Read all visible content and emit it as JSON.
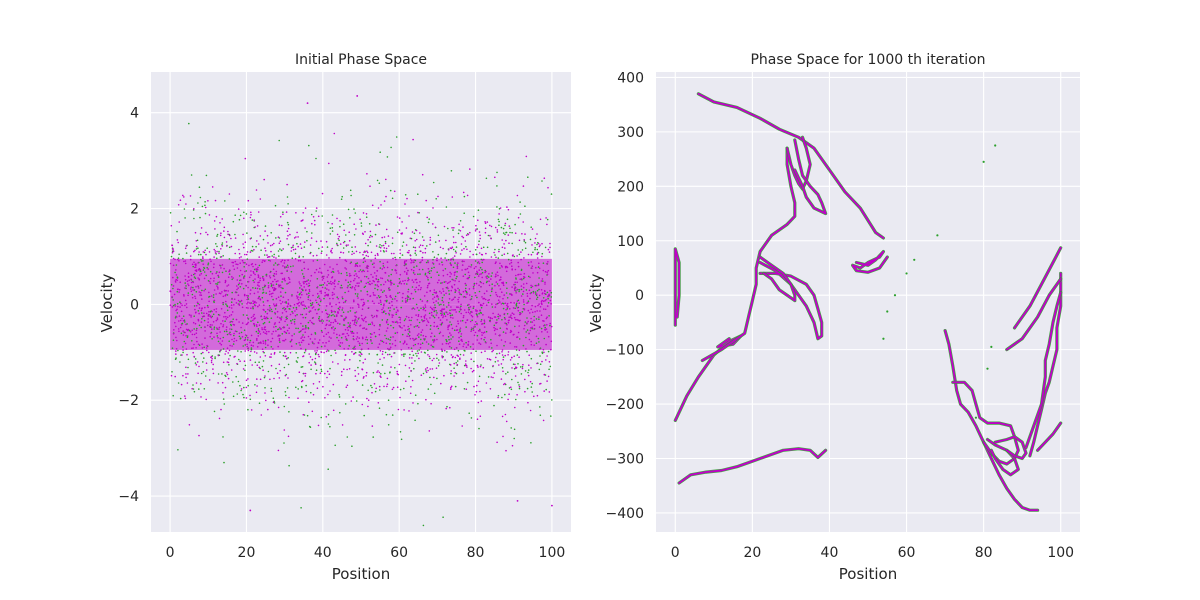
{
  "chart_data": [
    {
      "type": "scatter",
      "title": "Initial Phase Space",
      "xlabel": "Position",
      "ylabel": "Velocity",
      "xlim": [
        -5,
        105
      ],
      "ylim": [
        -4.75,
        4.85
      ],
      "xticks": [
        0,
        20,
        40,
        60,
        80,
        100
      ],
      "yticks": [
        -4,
        -2,
        0,
        2,
        4
      ],
      "grid": true,
      "background": "#eaeaf2",
      "series": [
        {
          "color": "#2ca02c",
          "distribution": "uniform position 0–100, Gaussian velocity",
          "velocity_std": 1.1,
          "point_count": 1400
        },
        {
          "color": "#c000c8",
          "distribution": "uniform position 0–100, Gaussian velocity",
          "velocity_std": 0.95,
          "point_count": 2600
        }
      ],
      "outliers": [
        {
          "x": 36,
          "y": 4.2
        },
        {
          "x": 49,
          "y": 4.35
        },
        {
          "x": 21,
          "y": -4.3
        },
        {
          "x": 100,
          "y": -4.2
        },
        {
          "x": 91,
          "y": -4.1
        }
      ]
    },
    {
      "type": "scatter",
      "title": "Phase Space for 1000 th iteration",
      "xlabel": "Position",
      "ylabel": "Velocity",
      "xlim": [
        -5,
        105
      ],
      "ylim": [
        -435,
        410
      ],
      "xticks": [
        0,
        20,
        40,
        60,
        80,
        100
      ],
      "yticks": [
        -400,
        -300,
        -200,
        -100,
        0,
        100,
        200,
        300,
        400
      ],
      "grid": true,
      "background": "#eaeaf2",
      "series": [
        {
          "color": "#2ca02c"
        },
        {
          "color": "#c000c8"
        }
      ],
      "curves": [
        [
          [
            6,
            370
          ],
          [
            10,
            355
          ],
          [
            16,
            345
          ],
          [
            22,
            325
          ],
          [
            27,
            305
          ],
          [
            32,
            290
          ],
          [
            36,
            270
          ],
          [
            40,
            230
          ],
          [
            44,
            190
          ],
          [
            48,
            160
          ],
          [
            52,
            115
          ],
          [
            54,
            105
          ]
        ],
        [
          [
            0,
            -230
          ],
          [
            3,
            -185
          ],
          [
            6,
            -150
          ],
          [
            10,
            -110
          ],
          [
            14,
            -85
          ],
          [
            17,
            -75
          ],
          [
            15,
            -90
          ],
          [
            11,
            -95
          ],
          [
            14,
            -80
          ]
        ],
        [
          [
            7,
            -120
          ],
          [
            12,
            -100
          ],
          [
            18,
            -70
          ],
          [
            19,
            -40
          ],
          [
            20,
            -10
          ],
          [
            21,
            20
          ],
          [
            21,
            50
          ],
          [
            22,
            80
          ],
          [
            25,
            110
          ],
          [
            29,
            130
          ],
          [
            31,
            145
          ],
          [
            31,
            170
          ],
          [
            30,
            200
          ],
          [
            29,
            240
          ],
          [
            29,
            270
          ]
        ],
        [
          [
            29,
            270
          ],
          [
            30,
            240
          ],
          [
            31,
            220
          ],
          [
            32,
            205
          ],
          [
            33,
            195
          ],
          [
            34,
            210
          ],
          [
            35,
            240
          ],
          [
            34,
            270
          ],
          [
            33,
            290
          ]
        ],
        [
          [
            31,
            285
          ],
          [
            32,
            250
          ],
          [
            33,
            220
          ],
          [
            35,
            200
          ],
          [
            37,
            185
          ],
          [
            38,
            170
          ],
          [
            39,
            150
          ],
          [
            36,
            160
          ],
          [
            34,
            180
          ],
          [
            33,
            200
          ],
          [
            31,
            230
          ]
        ],
        [
          [
            22,
            40
          ],
          [
            26,
            40
          ],
          [
            30,
            35
          ],
          [
            34,
            20
          ],
          [
            36,
            0
          ],
          [
            37,
            -25
          ],
          [
            38,
            -50
          ],
          [
            38,
            -75
          ],
          [
            37,
            -80
          ],
          [
            36,
            -50
          ],
          [
            34,
            -20
          ],
          [
            30,
            20
          ],
          [
            26,
            45
          ],
          [
            22,
            60
          ]
        ],
        [
          [
            22,
            70
          ],
          [
            25,
            55
          ],
          [
            28,
            40
          ],
          [
            30,
            20
          ],
          [
            31,
            0
          ],
          [
            31,
            -10
          ],
          [
            29,
            0
          ],
          [
            27,
            10
          ],
          [
            25,
            30
          ],
          [
            23,
            40
          ]
        ],
        [
          [
            47,
            60
          ],
          [
            50,
            55
          ],
          [
            52,
            65
          ],
          [
            54,
            80
          ],
          [
            53,
            70
          ],
          [
            50,
            60
          ],
          [
            48,
            50
          ],
          [
            46,
            55
          ],
          [
            47,
            45
          ],
          [
            50,
            42
          ],
          [
            53,
            50
          ],
          [
            55,
            70
          ]
        ],
        [
          [
            0,
            -55
          ],
          [
            0,
            -30
          ],
          [
            0,
            0
          ],
          [
            0,
            30
          ],
          [
            0,
            60
          ],
          [
            0,
            85
          ],
          [
            1,
            60
          ],
          [
            1,
            30
          ],
          [
            1,
            0
          ],
          [
            0.5,
            -40
          ]
        ],
        [
          [
            1,
            -345
          ],
          [
            4,
            -330
          ],
          [
            8,
            -325
          ],
          [
            12,
            -322
          ],
          [
            16,
            -315
          ],
          [
            20,
            -305
          ],
          [
            24,
            -295
          ],
          [
            28,
            -285
          ],
          [
            32,
            -282
          ],
          [
            35,
            -285
          ],
          [
            37,
            -298
          ],
          [
            39,
            -285
          ]
        ],
        [
          [
            70,
            -65
          ],
          [
            71,
            -90
          ],
          [
            72,
            -130
          ],
          [
            73,
            -175
          ],
          [
            74,
            -200
          ],
          [
            76,
            -215
          ],
          [
            78,
            -240
          ],
          [
            80,
            -270
          ],
          [
            82,
            -300
          ],
          [
            84,
            -330
          ],
          [
            86,
            -355
          ],
          [
            88,
            -375
          ],
          [
            90,
            -390
          ],
          [
            92,
            -395
          ],
          [
            94,
            -395
          ]
        ],
        [
          [
            72,
            -160
          ],
          [
            75,
            -160
          ],
          [
            77,
            -175
          ],
          [
            78,
            -200
          ],
          [
            79,
            -225
          ],
          [
            81,
            -235
          ],
          [
            84,
            -235
          ],
          [
            87,
            -240
          ],
          [
            88,
            -260
          ],
          [
            89,
            -285
          ],
          [
            88,
            -300
          ],
          [
            86,
            -310
          ],
          [
            84,
            -305
          ],
          [
            82,
            -290
          ],
          [
            80,
            -270
          ]
        ],
        [
          [
            81,
            -265
          ],
          [
            83,
            -275
          ],
          [
            86,
            -285
          ],
          [
            88,
            -300
          ],
          [
            89,
            -320
          ],
          [
            87,
            -330
          ],
          [
            85,
            -320
          ],
          [
            83,
            -300
          ],
          [
            82,
            -285
          ]
        ],
        [
          [
            83,
            -270
          ],
          [
            86,
            -265
          ],
          [
            88,
            -260
          ],
          [
            90,
            -270
          ],
          [
            91,
            -290
          ],
          [
            90,
            -300
          ],
          [
            88,
            -295
          ],
          [
            86,
            -285
          ]
        ],
        [
          [
            92,
            -295
          ],
          [
            93,
            -270
          ],
          [
            94,
            -240
          ],
          [
            95,
            -210
          ],
          [
            96,
            -180
          ],
          [
            97,
            -160
          ],
          [
            98,
            -130
          ],
          [
            99,
            -100
          ],
          [
            99,
            -60
          ],
          [
            100,
            -20
          ],
          [
            100,
            20
          ],
          [
            100,
            40
          ]
        ],
        [
          [
            94,
            -285
          ],
          [
            96,
            -270
          ],
          [
            98,
            -255
          ],
          [
            100,
            -235
          ]
        ],
        [
          [
            91,
            -280
          ],
          [
            92,
            -260
          ],
          [
            95,
            -200
          ],
          [
            96,
            -150
          ],
          [
            96,
            -120
          ],
          [
            97,
            -90
          ],
          [
            98,
            -50
          ],
          [
            99,
            -20
          ],
          [
            100,
            5
          ]
        ],
        [
          [
            86,
            -100
          ],
          [
            90,
            -80
          ],
          [
            94,
            -40
          ],
          [
            97,
            0
          ],
          [
            100,
            30
          ]
        ],
        [
          [
            88,
            -60
          ],
          [
            92,
            -20
          ],
          [
            95,
            20
          ],
          [
            98,
            60
          ],
          [
            100,
            87
          ]
        ]
      ],
      "scattered_points": [
        {
          "x": 80,
          "y": 245
        },
        {
          "x": 83,
          "y": 275
        },
        {
          "x": 68,
          "y": 110
        },
        {
          "x": 57,
          "y": 0
        },
        {
          "x": 54,
          "y": -80
        },
        {
          "x": 55,
          "y": -30
        },
        {
          "x": 78,
          "y": -225
        },
        {
          "x": 81,
          "y": -135
        },
        {
          "x": 82,
          "y": -95
        },
        {
          "x": 62,
          "y": 65
        },
        {
          "x": 60,
          "y": 40
        }
      ]
    }
  ]
}
